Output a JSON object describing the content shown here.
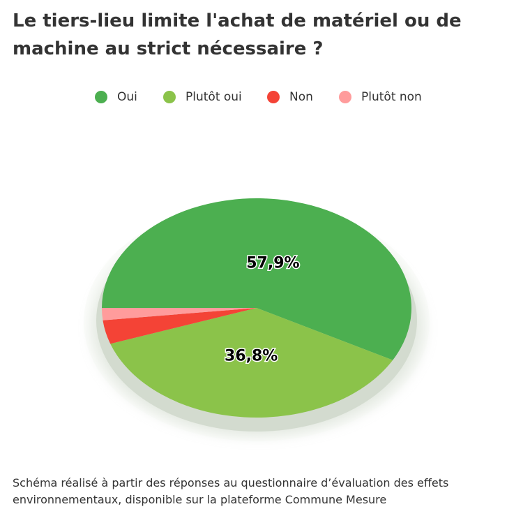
{
  "title": "Le tiers-lieu limite l'achat de matériel ou de machine au strict nécessaire ?",
  "caption": "Schéma réalisé à partir des réponses au questionnaire d’évaluation des effets environnementaux, disponible sur la plateforme Commune Mesure",
  "legend": [
    {
      "label": "Oui",
      "color": "#4caf50"
    },
    {
      "label": "Plutôt oui",
      "color": "#8bc34a"
    },
    {
      "label": "Non",
      "color": "#f44336"
    },
    {
      "label": "Plutôt non",
      "color": "#ff9c9c"
    }
  ],
  "chart_data": {
    "type": "pie",
    "categories": [
      "Oui",
      "Plutôt oui",
      "Non",
      "Plutôt non"
    ],
    "values": [
      57.9,
      36.8,
      3.5,
      1.8
    ],
    "colors": [
      "#4caf50",
      "#8bc34a",
      "#f44336",
      "#ff9c9c"
    ],
    "data_labels": [
      "57,9%",
      "36,8%",
      "",
      ""
    ],
    "legend_position": "top"
  }
}
